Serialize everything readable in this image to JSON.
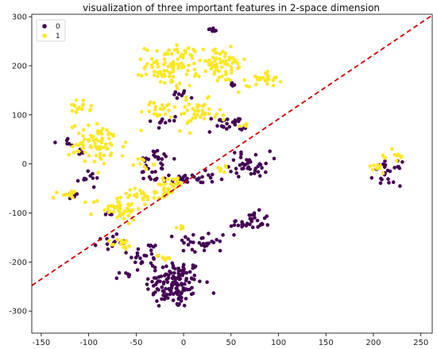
{
  "chart_data": {
    "type": "scatter",
    "title": "visualization of three important features in 2-space dimension",
    "xlabel": "",
    "ylabel": "",
    "xlim": [
      -160,
      262
    ],
    "ylim": [
      -345,
      305
    ],
    "xticks": [
      -150,
      -100,
      -50,
      0,
      50,
      100,
      150,
      200,
      250
    ],
    "yticks": [
      -300,
      -200,
      -100,
      0,
      100,
      200,
      300
    ],
    "grid": false,
    "legend_position": "top-left",
    "reference_line": {
      "style": "dashed",
      "color": "#cc0000",
      "points": [
        [
          -160,
          -248
        ],
        [
          262,
          303
        ]
      ]
    },
    "series": [
      {
        "name": "0",
        "color": "#440154",
        "clusters": [
          {
            "center": [
              -10,
              -245
            ],
            "spread": [
              25,
              42
            ],
            "count": 140
          },
          {
            "center": [
              -40,
              -185
            ],
            "spread": [
              16,
              22
            ],
            "count": 25
          },
          {
            "center": [
              20,
              -160
            ],
            "spread": [
              22,
              20
            ],
            "count": 30
          },
          {
            "center": [
              70,
              -120
            ],
            "spread": [
              18,
              18
            ],
            "count": 35
          },
          {
            "center": [
              -75,
              -160
            ],
            "spread": [
              12,
              12
            ],
            "count": 15
          },
          {
            "center": [
              -60,
              -225
            ],
            "spread": [
              6,
              4
            ],
            "count": 5
          },
          {
            "center": [
              0,
              -30
            ],
            "spread": [
              28,
              12
            ],
            "count": 40
          },
          {
            "center": [
              -30,
              10
            ],
            "spread": [
              16,
              14
            ],
            "count": 20
          },
          {
            "center": [
              70,
              0
            ],
            "spread": [
              18,
              22
            ],
            "count": 40
          },
          {
            "center": [
              45,
              80
            ],
            "spread": [
              18,
              14
            ],
            "count": 25
          },
          {
            "center": [
              -100,
              -30
            ],
            "spread": [
              10,
              10
            ],
            "count": 12
          },
          {
            "center": [
              -125,
              45
            ],
            "spread": [
              10,
              8
            ],
            "count": 6
          },
          {
            "center": [
              -110,
              25
            ],
            "spread": [
              8,
              8
            ],
            "count": 6
          },
          {
            "center": [
              -115,
              -65
            ],
            "spread": [
              8,
              8
            ],
            "count": 6
          },
          {
            "center": [
              -5,
              140
            ],
            "spread": [
              8,
              8
            ],
            "count": 8
          },
          {
            "center": [
              -20,
              90
            ],
            "spread": [
              12,
              12
            ],
            "count": 10
          },
          {
            "center": [
              -30,
              -15
            ],
            "spread": [
              10,
              8
            ],
            "count": 6
          },
          {
            "center": [
              30,
              270
            ],
            "spread": [
              8,
              6
            ],
            "count": 6
          },
          {
            "center": [
              55,
              165
            ],
            "spread": [
              6,
              4
            ],
            "count": 4
          },
          {
            "center": [
              215,
              -20
            ],
            "spread": [
              12,
              20
            ],
            "count": 25
          },
          {
            "center": [
              -80,
              -100
            ],
            "spread": [
              8,
              5
            ],
            "count": 4
          }
        ]
      },
      {
        "name": "1",
        "color": "#fde725",
        "clusters": [
          {
            "center": [
              -90,
              40
            ],
            "spread": [
              25,
              35
            ],
            "count": 80
          },
          {
            "center": [
              -110,
              115
            ],
            "spread": [
              10,
              12
            ],
            "count": 16
          },
          {
            "center": [
              -125,
              -60
            ],
            "spread": [
              10,
              8
            ],
            "count": 12
          },
          {
            "center": [
              -10,
              200
            ],
            "spread": [
              25,
              35
            ],
            "count": 100
          },
          {
            "center": [
              40,
              200
            ],
            "spread": [
              22,
              30
            ],
            "count": 60
          },
          {
            "center": [
              85,
              175
            ],
            "spread": [
              15,
              14
            ],
            "count": 30
          },
          {
            "center": [
              15,
              100
            ],
            "spread": [
              20,
              25
            ],
            "count": 40
          },
          {
            "center": [
              -25,
              110
            ],
            "spread": [
              15,
              15
            ],
            "count": 20
          },
          {
            "center": [
              -70,
              -90
            ],
            "spread": [
              22,
              20
            ],
            "count": 50
          },
          {
            "center": [
              -40,
              -60
            ],
            "spread": [
              18,
              15
            ],
            "count": 25
          },
          {
            "center": [
              -10,
              -40
            ],
            "spread": [
              14,
              14
            ],
            "count": 20
          },
          {
            "center": [
              -65,
              -165
            ],
            "spread": [
              10,
              10
            ],
            "count": 15
          },
          {
            "center": [
              -20,
              -190
            ],
            "spread": [
              8,
              6
            ],
            "count": 8
          },
          {
            "center": [
              -20,
              -60
            ],
            "spread": [
              10,
              10
            ],
            "count": 12
          },
          {
            "center": [
              -45,
              0
            ],
            "spread": [
              10,
              10
            ],
            "count": 10
          },
          {
            "center": [
              40,
              -10
            ],
            "spread": [
              8,
              10
            ],
            "count": 6
          },
          {
            "center": [
              225,
              15
            ],
            "spread": [
              8,
              18
            ],
            "count": 12
          },
          {
            "center": [
              205,
              -10
            ],
            "spread": [
              6,
              8
            ],
            "count": 8
          },
          {
            "center": [
              -5,
              -130
            ],
            "spread": [
              6,
              6
            ],
            "count": 6
          },
          {
            "center": [
              60,
              80
            ],
            "spread": [
              8,
              6
            ],
            "count": 5
          }
        ]
      }
    ]
  }
}
